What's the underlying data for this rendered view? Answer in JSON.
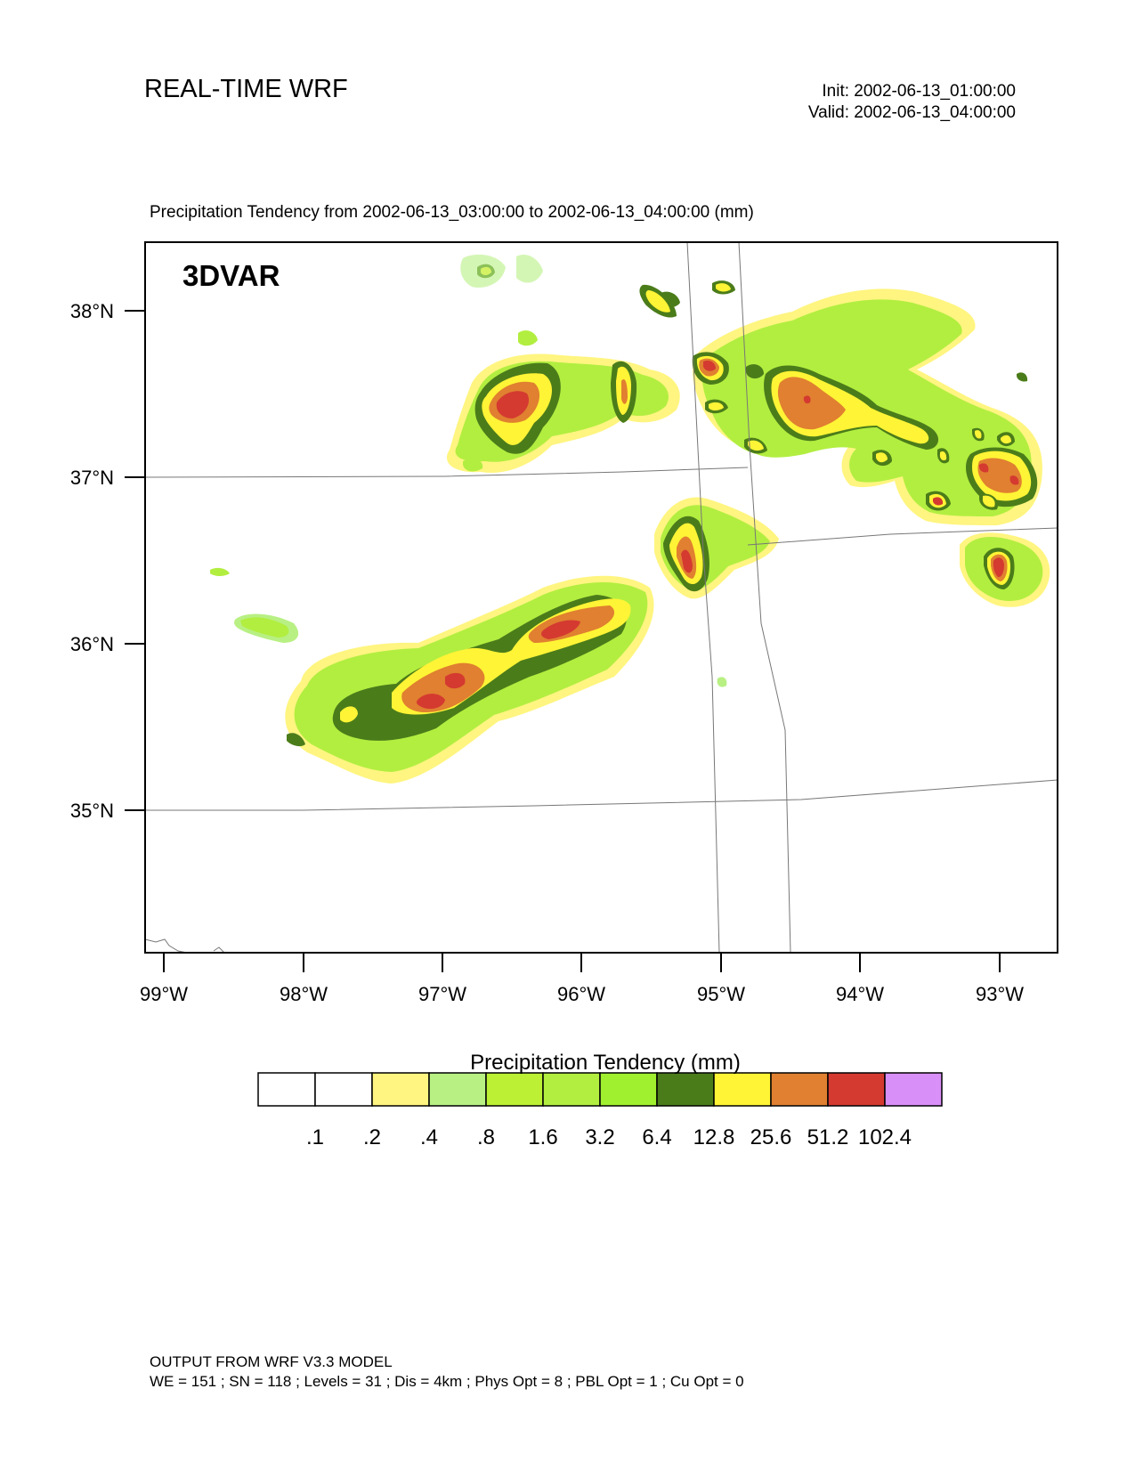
{
  "header": {
    "title": "REAL-TIME WRF",
    "init": "Init: 2002-06-13_01:00:00",
    "valid": "Valid: 2002-06-13_04:00:00"
  },
  "subtitle": "Precipitation Tendency from 2002-06-13_03:00:00 to 2002-06-13_04:00:00   (mm)",
  "map": {
    "panel_label": "3DVAR",
    "lat_labels": [
      "38°N",
      "37°N",
      "36°N",
      "35°N"
    ],
    "lon_labels": [
      "99°W",
      "98°W",
      "97°W",
      "96°W",
      "95°W",
      "94°W",
      "93°W"
    ]
  },
  "legend": {
    "title": "Precipitation Tendency  (mm)",
    "colors": [
      "#ffffff",
      "#ffffff",
      "#fff580",
      "#b8f084",
      "#bbf034",
      "#b2ee40",
      "#a0f030",
      "#4b7c1a",
      "#fff435",
      "#e08030",
      "#d43a30",
      "#d890f8"
    ],
    "labels": [
      ".1",
      ".2",
      ".4",
      ".8",
      "1.6",
      "3.2",
      "6.4",
      "12.8",
      "25.6",
      "51.2",
      "102.4"
    ]
  },
  "footer": {
    "line1": "OUTPUT FROM WRF V3.3 MODEL",
    "line2": "WE = 151 ; SN = 118 ; Levels = 31 ; Dis = 4km ; Phys Opt = 8 ; PBL Opt = 1 ; Cu Opt = 0"
  }
}
